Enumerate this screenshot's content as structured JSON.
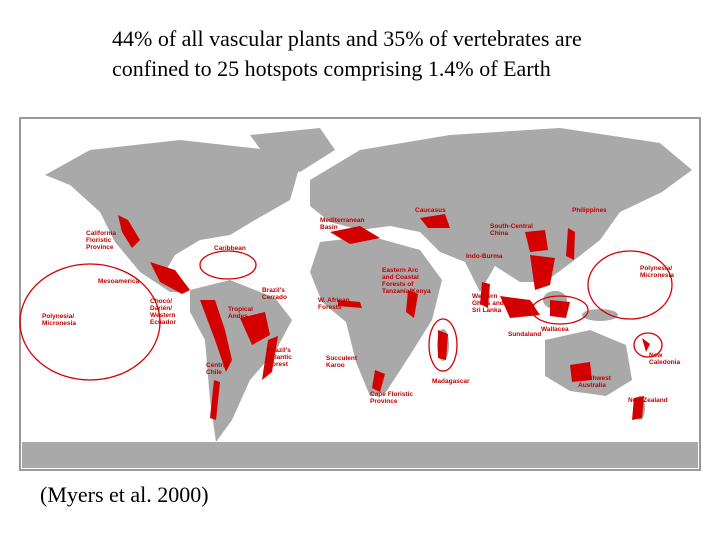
{
  "header": {
    "lines": [
      "44% of all vascular plants and 35% of vertebrates are",
      "confined to 25 hotspots comprising 1.4% of Earth"
    ]
  },
  "citation": "(Myers et al. 2000)",
  "map": {
    "labels": [
      {
        "lines": [
          "California",
          "Floristic",
          "Province"
        ]
      },
      {
        "lines": [
          "Mesoamerica"
        ]
      },
      {
        "lines": [
          "Caribbean"
        ]
      },
      {
        "lines": [
          "Chocó/",
          "Darién/",
          "Western",
          "Ecuador"
        ]
      },
      {
        "lines": [
          "Polynesia/",
          "Micronesia"
        ]
      },
      {
        "lines": [
          "Tropical",
          "Andes"
        ]
      },
      {
        "lines": [
          "Brazil's",
          "Cerrado"
        ]
      },
      {
        "lines": [
          "Central",
          "Chile"
        ]
      },
      {
        "lines": [
          "Brazil's",
          "Atlantic",
          "Forest"
        ]
      },
      {
        "lines": [
          "Mediterranean",
          "Basin"
        ]
      },
      {
        "lines": [
          "Caucasus"
        ]
      },
      {
        "lines": [
          "W. African",
          "Forests"
        ]
      },
      {
        "lines": [
          "Eastern Arc",
          "and Coastal",
          "Forests of",
          "Tanzania/Kenya"
        ]
      },
      {
        "lines": [
          "Succulent",
          "Karoo"
        ]
      },
      {
        "lines": [
          "Cape Floristic",
          "Province"
        ]
      },
      {
        "lines": [
          "Madagascar"
        ]
      },
      {
        "lines": [
          "South-Central",
          "China"
        ]
      },
      {
        "lines": [
          "Indo-Burma"
        ]
      },
      {
        "lines": [
          "Philippines"
        ]
      },
      {
        "lines": [
          "Western",
          "Ghats and",
          "Sri Lanka"
        ]
      },
      {
        "lines": [
          "Sundaland"
        ]
      },
      {
        "lines": [
          "Wallacea"
        ]
      },
      {
        "lines": [
          "Polynesia/",
          "Micronesia"
        ]
      },
      {
        "lines": [
          "New",
          "Caledonia"
        ]
      },
      {
        "lines": [
          "Southwest",
          "Australia"
        ]
      },
      {
        "lines": [
          "New Zealand"
        ]
      }
    ]
  }
}
